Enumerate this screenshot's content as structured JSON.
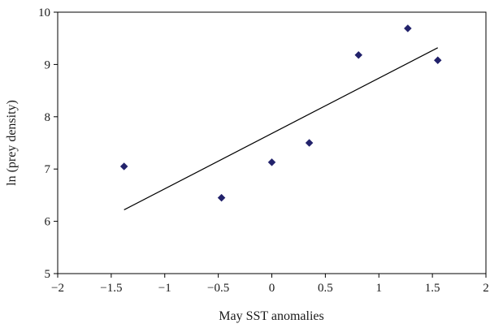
{
  "chart_data": {
    "type": "scatter",
    "title": "",
    "xlabel": "May SST anomalies",
    "ylabel": "ln (prey density)",
    "xlim": [
      -2,
      2
    ],
    "ylim": [
      5,
      10
    ],
    "xticks": [
      -2,
      -1.5,
      -1,
      -0.5,
      0,
      0.5,
      1,
      1.5,
      2
    ],
    "yticks": [
      5,
      6,
      7,
      8,
      9,
      10
    ],
    "xtick_labels": [
      "−2",
      "−1.5",
      "−1",
      "−0.5",
      "0",
      "0.5",
      "1",
      "1.5",
      "2"
    ],
    "ytick_labels": [
      "5",
      "6",
      "7",
      "8",
      "9",
      "10"
    ],
    "grid": false,
    "legend": "none",
    "marker_color": "#22226b",
    "points": [
      {
        "x": -1.38,
        "y": 7.05
      },
      {
        "x": -0.47,
        "y": 6.45
      },
      {
        "x": 0.0,
        "y": 7.13
      },
      {
        "x": 0.35,
        "y": 7.5
      },
      {
        "x": 0.81,
        "y": 9.18
      },
      {
        "x": 1.27,
        "y": 9.69
      },
      {
        "x": 1.55,
        "y": 9.08
      }
    ],
    "trendline": {
      "x": [
        -1.38,
        1.55
      ],
      "y": [
        6.22,
        9.32
      ]
    }
  }
}
